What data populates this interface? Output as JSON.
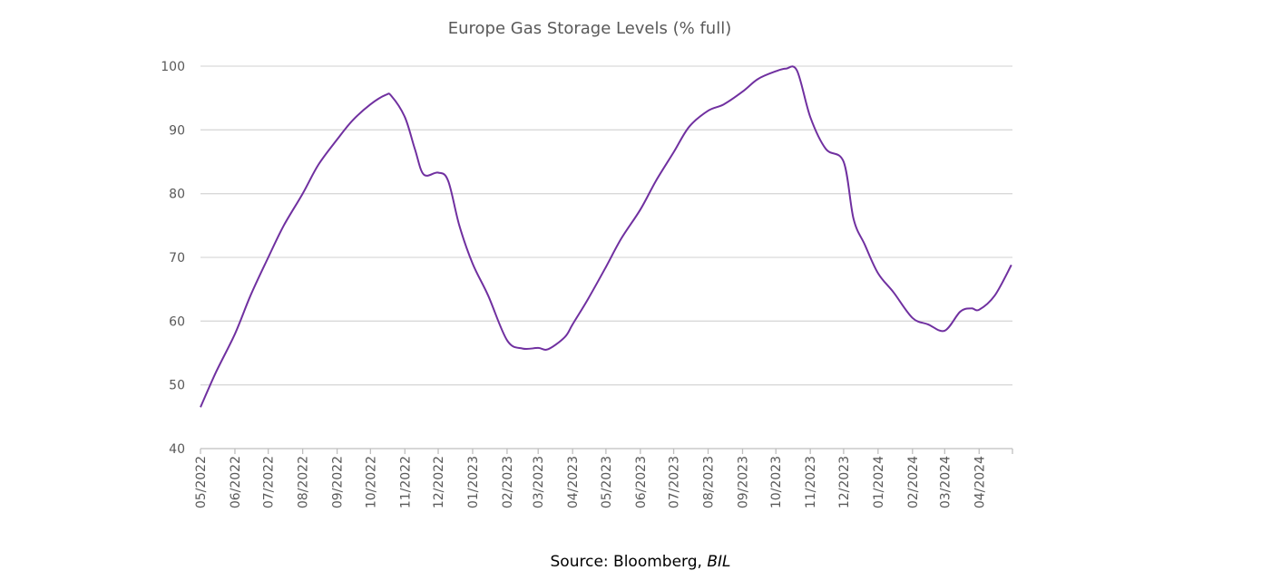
{
  "chart_data": {
    "type": "line",
    "title": "Europe Gas Storage Levels (% full)",
    "xlabel": "",
    "ylabel": "",
    "ylim": [
      40,
      100
    ],
    "yticks": [
      40,
      50,
      60,
      70,
      80,
      90,
      100
    ],
    "grid": true,
    "line_color": "#7030A0",
    "x_tick_labels": [
      "05/2022",
      "06/2022",
      "07/2022",
      "08/2022",
      "09/2022",
      "10/2022",
      "11/2022",
      "12/2022",
      "01/2023",
      "02/2023",
      "03/2023",
      "04/2023",
      "05/2023",
      "06/2023",
      "07/2023",
      "08/2023",
      "09/2023",
      "10/2023",
      "11/2023",
      "12/2023",
      "01/2024",
      "02/2024",
      "03/2024",
      "04/2024"
    ],
    "series": [
      {
        "x": [
          "2022-05-01",
          "2022-05-15",
          "2022-06-01",
          "2022-06-15",
          "2022-07-01",
          "2022-07-15",
          "2022-08-01",
          "2022-08-15",
          "2022-09-01",
          "2022-09-15",
          "2022-10-01",
          "2022-10-15",
          "2022-10-20",
          "2022-11-01",
          "2022-11-10",
          "2022-11-18",
          "2022-12-01",
          "2022-12-10",
          "2022-12-20",
          "2023-01-01",
          "2023-01-15",
          "2023-02-01",
          "2023-02-15",
          "2023-03-01",
          "2023-03-10",
          "2023-03-25",
          "2023-04-01",
          "2023-04-15",
          "2023-05-01",
          "2023-05-15",
          "2023-06-01",
          "2023-06-15",
          "2023-07-01",
          "2023-07-15",
          "2023-08-01",
          "2023-08-15",
          "2023-09-01",
          "2023-09-15",
          "2023-10-01",
          "2023-10-10",
          "2023-10-20",
          "2023-11-01",
          "2023-11-15",
          "2023-12-01",
          "2023-12-10",
          "2023-12-20",
          "2024-01-01",
          "2024-01-15",
          "2024-02-01",
          "2024-02-15",
          "2024-03-01",
          "2024-03-15",
          "2024-03-25",
          "2024-04-01",
          "2024-04-15",
          "2024-04-30"
        ],
        "values": [
          46.5,
          52,
          58,
          64,
          70,
          75,
          80,
          84.5,
          88.5,
          91.5,
          94,
          95.5,
          95.3,
          92,
          87,
          83,
          83.3,
          82,
          75,
          69,
          64,
          57,
          55.7,
          55.8,
          55.6,
          57.5,
          59.5,
          63.5,
          68.5,
          73,
          77.5,
          82,
          86.5,
          90.5,
          93,
          94,
          96,
          98,
          99.2,
          99.6,
          99.3,
          92,
          87,
          85,
          76,
          72,
          67.5,
          64.5,
          60.5,
          59.5,
          58.5,
          61.5,
          62,
          61.8,
          64,
          68.8
        ]
      }
    ],
    "source_text": "Source: Bloomberg, ",
    "source_italic": "BIL"
  }
}
